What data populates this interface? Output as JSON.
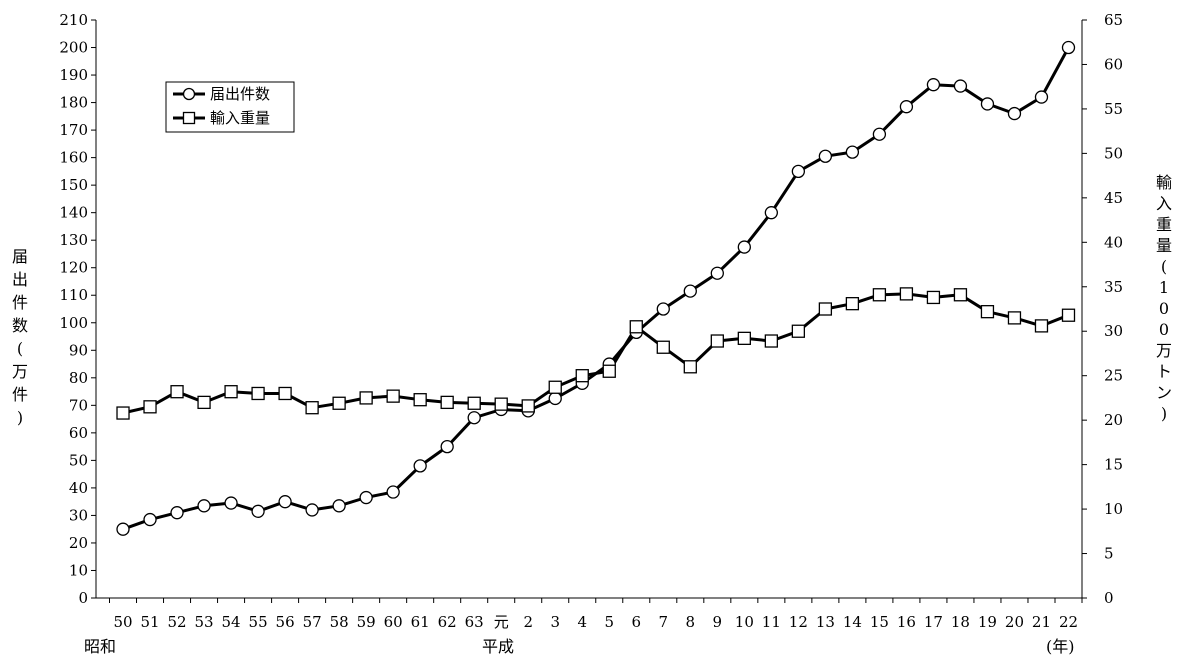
{
  "chart_data": {
    "type": "line",
    "categories": [
      "50",
      "51",
      "52",
      "53",
      "54",
      "55",
      "56",
      "57",
      "58",
      "59",
      "60",
      "61",
      "62",
      "63",
      "元",
      "2",
      "3",
      "4",
      "5",
      "6",
      "7",
      "8",
      "9",
      "10",
      "11",
      "12",
      "13",
      "14",
      "15",
      "16",
      "17",
      "18",
      "19",
      "20",
      "21",
      "22"
    ],
    "era_labels": {
      "showa": "昭和",
      "heisei": "平成",
      "year_unit": "(年)"
    },
    "left_axis": {
      "label": "届出件数(万件)",
      "ticks": [
        0,
        10,
        20,
        30,
        40,
        50,
        60,
        70,
        80,
        90,
        100,
        110,
        120,
        130,
        140,
        150,
        160,
        170,
        180,
        190,
        200,
        210
      ],
      "ylim": [
        0,
        210
      ]
    },
    "right_axis": {
      "label": "輸入重量(100万トン)",
      "ticks": [
        0,
        5,
        10,
        15,
        20,
        25,
        30,
        35,
        40,
        45,
        50,
        55,
        60,
        65
      ],
      "ylim": [
        0,
        65
      ]
    },
    "series": [
      {
        "name": "届出件数",
        "axis": "left",
        "marker": "circle",
        "values": [
          25,
          28.5,
          31,
          33.5,
          34.5,
          31.5,
          35,
          32,
          33.5,
          36.5,
          38.5,
          48,
          55,
          65.5,
          68.5,
          68,
          72.5,
          78,
          85,
          96.5,
          105,
          111.5,
          118,
          127.5,
          140,
          155,
          160.5,
          162,
          168.5,
          178.5,
          186.5,
          186,
          179.5,
          176,
          182,
          200
        ]
      },
      {
        "name": "輸入重量",
        "axis": "right",
        "marker": "square",
        "values": [
          20.8,
          21.5,
          23.2,
          22,
          23.2,
          23,
          23,
          21.4,
          21.9,
          22.5,
          22.7,
          22.3,
          22,
          21.9,
          21.8,
          21.6,
          23.7,
          25,
          25.5,
          30.5,
          28.2,
          26,
          28.9,
          29.2,
          28.9,
          30,
          32.5,
          33.1,
          34.1,
          34.2,
          33.8,
          34.1,
          32.2,
          31.5,
          30.6,
          31.8
        ]
      }
    ],
    "legend": "top-left",
    "grid": false
  }
}
